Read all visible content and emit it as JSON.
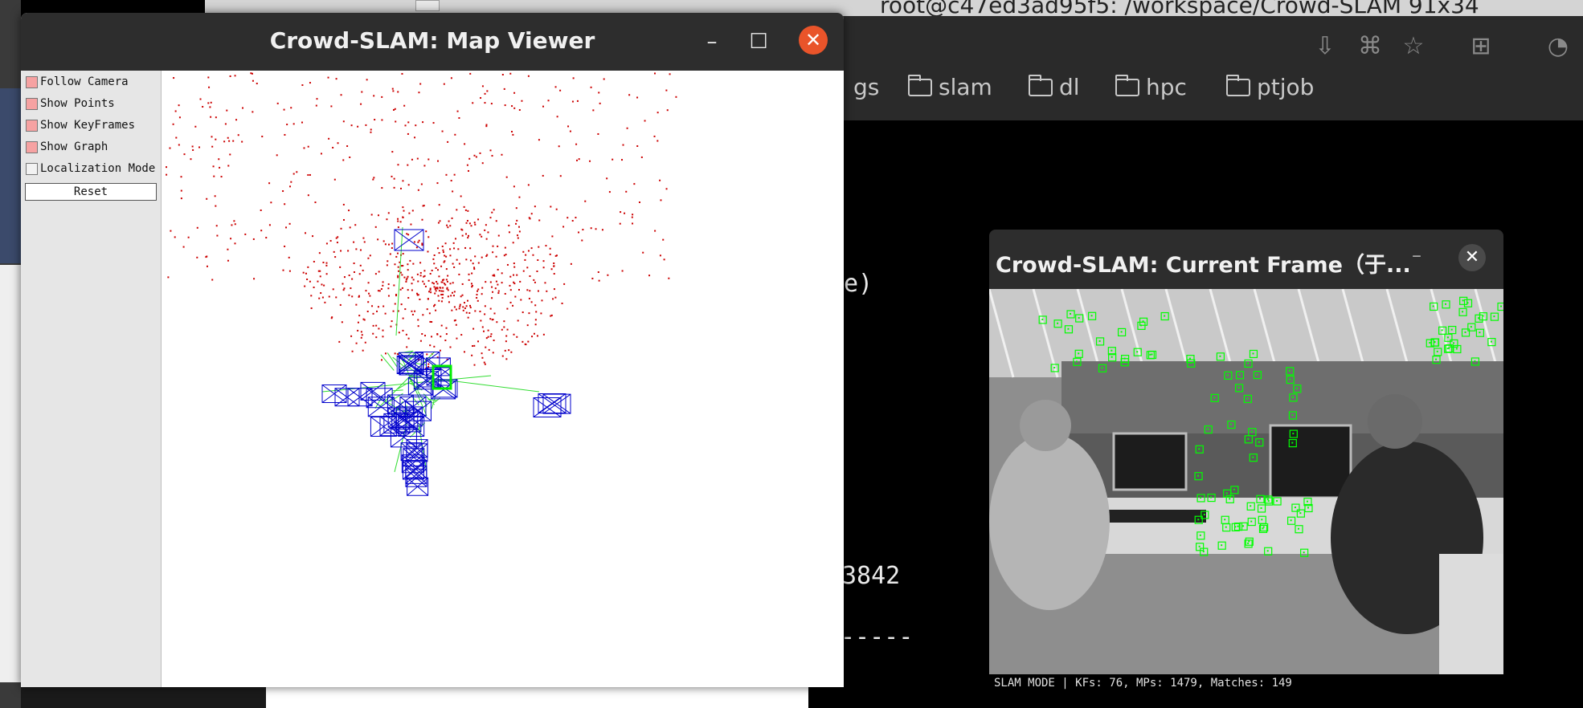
{
  "terminal": {
    "title": "root@c47ed3ad95f5: /workspace/Crowd-SLAM 91x34",
    "lines": [
      {
        "text": "e)"
      },
      {
        "text": "3842"
      },
      {
        "text": "-----"
      }
    ]
  },
  "browser": {
    "bookmarks": [
      "gs",
      "slam",
      "dl",
      "hpc",
      "ptjob"
    ]
  },
  "map_viewer": {
    "title": "Crowd-SLAM: Map Viewer",
    "options": [
      {
        "label": "Follow Camera",
        "checked": true
      },
      {
        "label": "Show Points",
        "checked": true
      },
      {
        "label": "Show KeyFrames",
        "checked": true
      },
      {
        "label": "Show Graph",
        "checked": true
      },
      {
        "label": "Localization Mode",
        "checked": false
      }
    ],
    "reset_label": "Reset",
    "colors": {
      "points": "#cc0000",
      "keyframes": "#0000cc",
      "graph": "#33dd33",
      "current": "#00ee00"
    }
  },
  "current_frame": {
    "title": "Crowd-SLAM: Current Frame（于...",
    "status": "SLAM MODE |  KFs: 76, MPs: 1479, Matches: 149",
    "feature_color": "#00ff00"
  }
}
